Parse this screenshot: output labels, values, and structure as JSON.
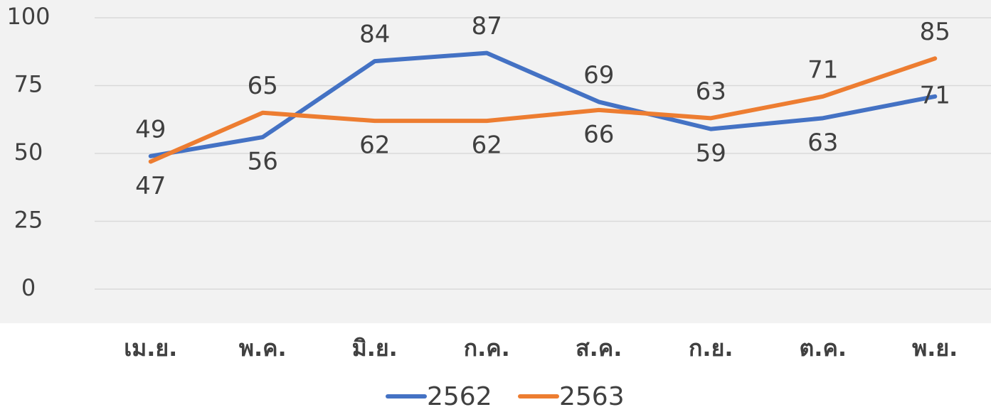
{
  "chart_data": {
    "type": "line",
    "categories": [
      "เม.ย.",
      "พ.ค.",
      "มิ.ย.",
      "ก.ค.",
      "ส.ค.",
      "ก.ย.",
      "ต.ค.",
      "พ.ย."
    ],
    "series": [
      {
        "name": "2562",
        "color": "#4472c4",
        "values": [
          49,
          56,
          84,
          87,
          69,
          59,
          63,
          71
        ]
      },
      {
        "name": "2563",
        "color": "#ed7d31",
        "values": [
          47,
          65,
          62,
          62,
          66,
          63,
          71,
          85
        ]
      }
    ],
    "ylim": [
      0,
      100
    ],
    "yticks": [
      0,
      25,
      50,
      75,
      100
    ],
    "grid": true,
    "legend": "bottom"
  }
}
